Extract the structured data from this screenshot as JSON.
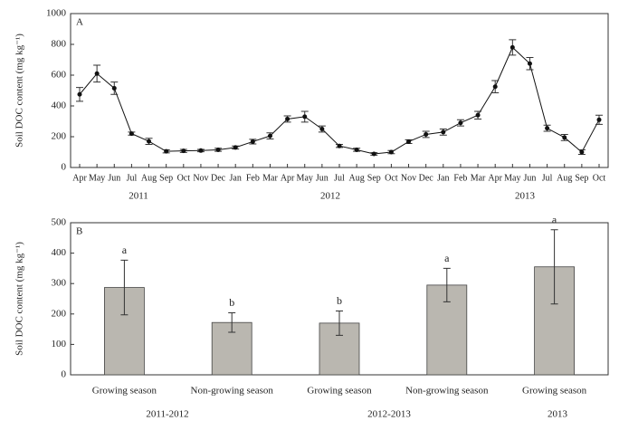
{
  "chart_data": [
    {
      "type": "line",
      "panel_label": "A",
      "y_label": "Soil DOC content (mg kg⁻¹)",
      "categories": [
        "Apr",
        "May",
        "Jun",
        "Jul",
        "Aug",
        "Sep",
        "Oct",
        "Nov",
        "Dec",
        "Jan",
        "Feb",
        "Mar",
        "Apr",
        "May",
        "Jun",
        "Jul",
        "Aug",
        "Sep",
        "Oct",
        "Nov",
        "Dec",
        "Jan",
        "Feb",
        "Mar",
        "Apr",
        "May",
        "Jun",
        "Jul",
        "Aug",
        "Sep",
        "Oct"
      ],
      "x_group_labels": [
        "2011",
        "2012",
        "2013"
      ],
      "values": [
        475,
        610,
        515,
        220,
        170,
        105,
        108,
        110,
        115,
        130,
        168,
        205,
        315,
        330,
        250,
        140,
        115,
        88,
        100,
        168,
        215,
        230,
        290,
        340,
        525,
        780,
        675,
        255,
        195,
        100,
        310
      ],
      "errors": [
        45,
        55,
        40,
        10,
        20,
        10,
        10,
        8,
        10,
        10,
        15,
        20,
        20,
        35,
        20,
        10,
        10,
        8,
        10,
        12,
        20,
        20,
        20,
        25,
        40,
        50,
        40,
        20,
        20,
        15,
        30
      ],
      "color": "#111111",
      "ylim": [
        0,
        1000
      ],
      "yticks": [
        0,
        200,
        400,
        600,
        800,
        1000
      ]
    },
    {
      "type": "bar",
      "panel_label": "B",
      "y_label": "Soil DOC content (mg kg⁻¹)",
      "categories": [
        "Growing season",
        "Non-growing season",
        "Growing season",
        "Non-growing season",
        "Growing season"
      ],
      "x_group_labels": [
        "2011-2012",
        "2012-2013",
        "2013"
      ],
      "values": [
        287,
        172,
        170,
        295,
        355
      ],
      "errors": [
        90,
        32,
        40,
        55,
        122
      ],
      "letters": [
        "a",
        "b",
        "b",
        "a",
        "a"
      ],
      "color": "#bab7b0",
      "ylim": [
        0,
        500
      ],
      "yticks": [
        0,
        100,
        200,
        300,
        400,
        500
      ]
    }
  ]
}
